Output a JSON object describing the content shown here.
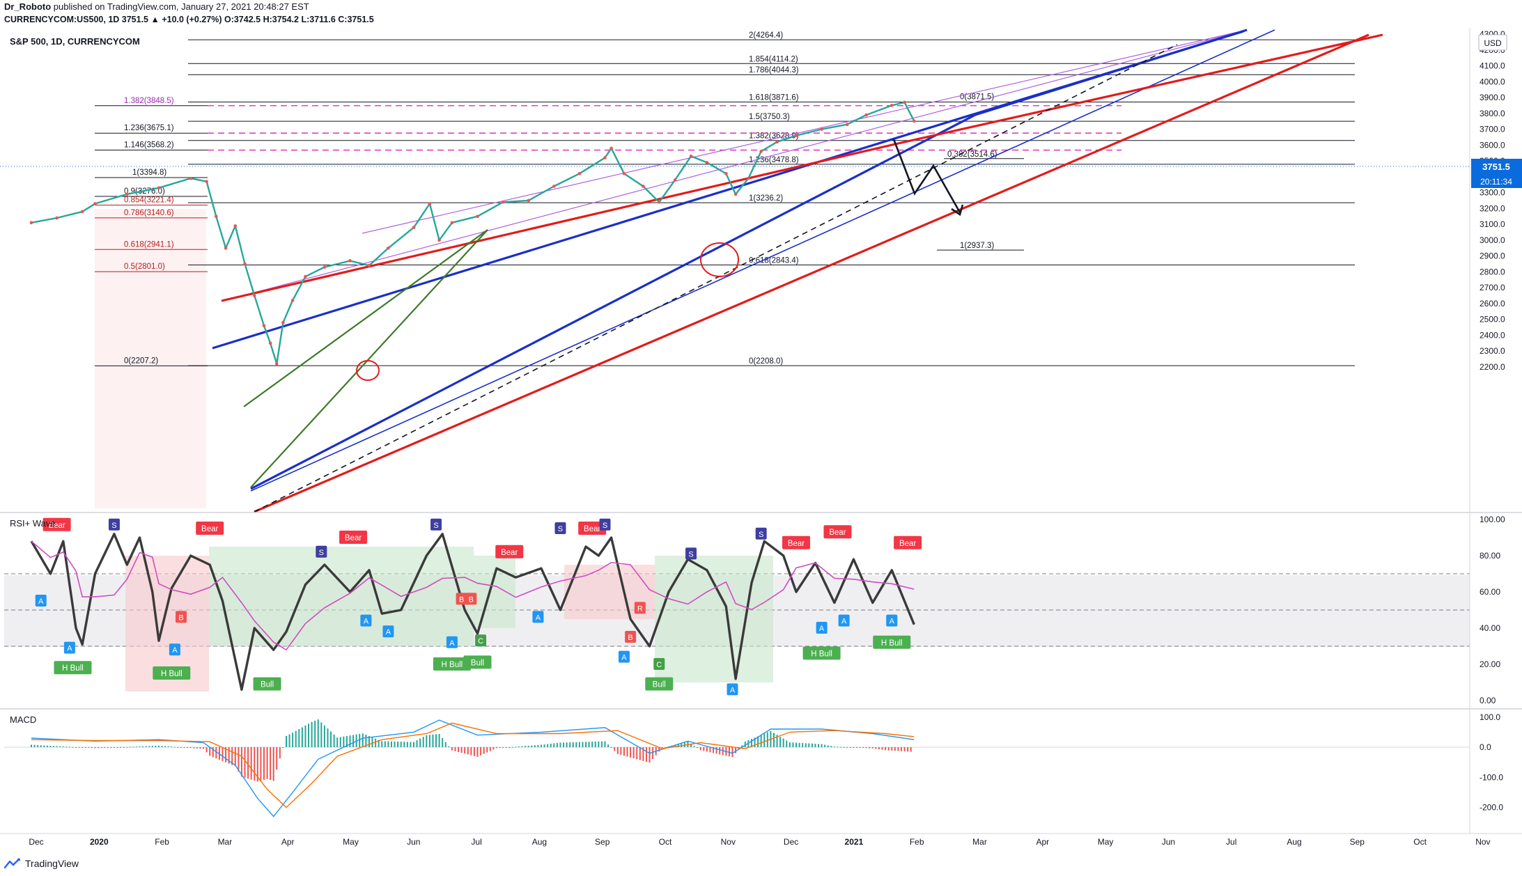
{
  "header": {
    "author": "Dr_Roboto",
    "published_text": "published on TradingView.com, January 27, 2021 20:48:27 EST",
    "symbol_line": "CURRENCYCOM:US500, 1D  3751.5 ▲ +10.0 (+0.27%) O:3742.5 H:3754.2 L:3711.6 C:3751.5"
  },
  "chart_data": {
    "type": "line",
    "title": "S&P 500, 1D, CURRENCYCOM",
    "currency": "USD",
    "last_price": "3751.5",
    "countdown": "20:11:34",
    "price_axis": {
      "ylim": [
        2200,
        4350
      ],
      "ticks": [
        "4300.0",
        "4200.0",
        "4100.0",
        "4000.0",
        "3900.0",
        "3800.0",
        "3700.0",
        "3600.0",
        "3500.0",
        "3400.0",
        "3300.0",
        "3200.0",
        "3100.0",
        "3000.0",
        "2900.0",
        "2800.0",
        "2700.0",
        "2600.0",
        "2500.0",
        "2400.0",
        "2300.0",
        "2200.0"
      ]
    },
    "time_axis": {
      "labels": [
        "Dec",
        "2020",
        "Feb",
        "Mar",
        "Apr",
        "May",
        "Jun",
        "Jul",
        "Aug",
        "Sep",
        "Oct",
        "Nov",
        "Dec",
        "2021",
        "Feb",
        "Mar",
        "Apr",
        "May",
        "Jun",
        "Jul",
        "Aug",
        "Sep",
        "Oct",
        "Nov"
      ]
    },
    "price_series": [
      {
        "m": 0,
        "v": 3110
      },
      {
        "m": 0.4,
        "v": 3140
      },
      {
        "m": 0.8,
        "v": 3180
      },
      {
        "m": 1.0,
        "v": 3230
      },
      {
        "m": 1.5,
        "v": 3290
      },
      {
        "m": 2.0,
        "v": 3330
      },
      {
        "m": 2.5,
        "v": 3390
      },
      {
        "m": 2.75,
        "v": 3370
      },
      {
        "m": 2.9,
        "v": 3150
      },
      {
        "m": 3.05,
        "v": 2950
      },
      {
        "m": 3.2,
        "v": 3090
      },
      {
        "m": 3.35,
        "v": 2850
      },
      {
        "m": 3.5,
        "v": 2650
      },
      {
        "m": 3.65,
        "v": 2460
      },
      {
        "m": 3.75,
        "v": 2350
      },
      {
        "m": 3.85,
        "v": 2220
      },
      {
        "m": 3.95,
        "v": 2480
      },
      {
        "m": 4.1,
        "v": 2620
      },
      {
        "m": 4.3,
        "v": 2770
      },
      {
        "m": 4.6,
        "v": 2830
      },
      {
        "m": 5.0,
        "v": 2870
      },
      {
        "m": 5.3,
        "v": 2840
      },
      {
        "m": 5.6,
        "v": 2950
      },
      {
        "m": 6.0,
        "v": 3080
      },
      {
        "m": 6.25,
        "v": 3230
      },
      {
        "m": 6.4,
        "v": 3000
      },
      {
        "m": 6.6,
        "v": 3110
      },
      {
        "m": 7.0,
        "v": 3150
      },
      {
        "m": 7.4,
        "v": 3240
      },
      {
        "m": 7.8,
        "v": 3250
      },
      {
        "m": 8.2,
        "v": 3340
      },
      {
        "m": 8.6,
        "v": 3420
      },
      {
        "m": 9.0,
        "v": 3520
      },
      {
        "m": 9.1,
        "v": 3580
      },
      {
        "m": 9.3,
        "v": 3420
      },
      {
        "m": 9.6,
        "v": 3340
      },
      {
        "m": 9.85,
        "v": 3240
      },
      {
        "m": 10.1,
        "v": 3380
      },
      {
        "m": 10.35,
        "v": 3530
      },
      {
        "m": 10.6,
        "v": 3490
      },
      {
        "m": 10.9,
        "v": 3420
      },
      {
        "m": 11.05,
        "v": 3290
      },
      {
        "m": 11.25,
        "v": 3390
      },
      {
        "m": 11.45,
        "v": 3560
      },
      {
        "m": 11.7,
        "v": 3620
      },
      {
        "m": 12.0,
        "v": 3660
      },
      {
        "m": 12.4,
        "v": 3700
      },
      {
        "m": 12.8,
        "v": 3730
      },
      {
        "m": 13.1,
        "v": 3790
      },
      {
        "m": 13.5,
        "v": 3850
      },
      {
        "m": 13.7,
        "v": 3870
      },
      {
        "m": 13.85,
        "v": 3751.5
      }
    ],
    "fib_levels": [
      {
        "label": "2(4264.4)",
        "price": 4264.4,
        "group": "right"
      },
      {
        "label": "1.854(4114.2)",
        "price": 4114.2,
        "group": "right"
      },
      {
        "label": "1.786(4044.3)",
        "price": 4044.3,
        "group": "right"
      },
      {
        "label": "1.618(3871.6)",
        "price": 3871.6,
        "group": "right"
      },
      {
        "label": "1.5(3750.3)",
        "price": 3750.3,
        "group": "right"
      },
      {
        "label": "1.382(3628.9)",
        "price": 3628.9,
        "group": "right"
      },
      {
        "label": "1.236(3478.8)",
        "price": 3478.8,
        "group": "right"
      },
      {
        "label": "1(3236.2)",
        "price": 3236.2,
        "group": "right"
      },
      {
        "label": "0.618(2843.4)",
        "price": 2843.4,
        "group": "right"
      },
      {
        "label": "0(2208.0)",
        "price": 2208.0,
        "group": "right"
      },
      {
        "label": "1.382(3848.5)",
        "price": 3848.5,
        "group": "left-ext"
      },
      {
        "label": "1.236(3675.1)",
        "price": 3675.1,
        "group": "left-ext"
      },
      {
        "label": "1.146(3568.2)",
        "price": 3568.2,
        "group": "left-ext"
      },
      {
        "label": "1(3394.8)",
        "price": 3394.8,
        "group": "left"
      },
      {
        "label": "0.9(3276.0)",
        "price": 3276.0,
        "group": "left"
      },
      {
        "label": "0.854(3221.4)",
        "price": 3221.4,
        "group": "left"
      },
      {
        "label": "0.786(3140.6)",
        "price": 3140.6,
        "group": "left"
      },
      {
        "label": "0.618(2941.1)",
        "price": 2941.1,
        "group": "left"
      },
      {
        "label": "0.5(2801.0)",
        "price": 2801.0,
        "group": "left"
      },
      {
        "label": "0(2207.2)",
        "price": 2207.2,
        "group": "left"
      },
      {
        "label": "0(3871.5)",
        "price": 3871.5,
        "group": "proj"
      },
      {
        "label": "0.382(3514.6)",
        "price": 3514.6,
        "group": "proj"
      },
      {
        "label": "1(2937.3)",
        "price": 2937.3,
        "group": "proj"
      }
    ],
    "rsi": {
      "title": "RSI+ Wave",
      "ylim": [
        0,
        100
      ],
      "ticks": [
        "100.00",
        "80.00",
        "60.00",
        "40.00",
        "20.00",
        "0.00"
      ],
      "bands": [
        70,
        50,
        30
      ],
      "series": [
        {
          "m": 0,
          "v": 88
        },
        {
          "m": 0.3,
          "v": 70
        },
        {
          "m": 0.5,
          "v": 88
        },
        {
          "m": 0.7,
          "v": 40
        },
        {
          "m": 0.8,
          "v": 31
        },
        {
          "m": 1.0,
          "v": 70
        },
        {
          "m": 1.3,
          "v": 92
        },
        {
          "m": 1.5,
          "v": 75
        },
        {
          "m": 1.7,
          "v": 90
        },
        {
          "m": 1.9,
          "v": 60
        },
        {
          "m": 2.0,
          "v": 33
        },
        {
          "m": 2.2,
          "v": 62
        },
        {
          "m": 2.5,
          "v": 80
        },
        {
          "m": 2.8,
          "v": 75
        },
        {
          "m": 3.0,
          "v": 55
        },
        {
          "m": 3.3,
          "v": 6
        },
        {
          "m": 3.5,
          "v": 40
        },
        {
          "m": 3.8,
          "v": 28
        },
        {
          "m": 4.0,
          "v": 38
        },
        {
          "m": 4.3,
          "v": 64
        },
        {
          "m": 4.6,
          "v": 75
        },
        {
          "m": 5.0,
          "v": 60
        },
        {
          "m": 5.3,
          "v": 72
        },
        {
          "m": 5.5,
          "v": 48
        },
        {
          "m": 5.8,
          "v": 50
        },
        {
          "m": 6.2,
          "v": 80
        },
        {
          "m": 6.45,
          "v": 92
        },
        {
          "m": 6.8,
          "v": 50
        },
        {
          "m": 7.0,
          "v": 37
        },
        {
          "m": 7.3,
          "v": 73
        },
        {
          "m": 7.6,
          "v": 68
        },
        {
          "m": 8.0,
          "v": 73
        },
        {
          "m": 8.3,
          "v": 50
        },
        {
          "m": 8.7,
          "v": 85
        },
        {
          "m": 8.9,
          "v": 80
        },
        {
          "m": 9.1,
          "v": 90
        },
        {
          "m": 9.4,
          "v": 45
        },
        {
          "m": 9.7,
          "v": 30
        },
        {
          "m": 10.0,
          "v": 60
        },
        {
          "m": 10.3,
          "v": 78
        },
        {
          "m": 10.6,
          "v": 72
        },
        {
          "m": 10.9,
          "v": 52
        },
        {
          "m": 11.05,
          "v": 12
        },
        {
          "m": 11.3,
          "v": 65
        },
        {
          "m": 11.5,
          "v": 88
        },
        {
          "m": 11.8,
          "v": 80
        },
        {
          "m": 12.0,
          "v": 60
        },
        {
          "m": 12.3,
          "v": 76
        },
        {
          "m": 12.6,
          "v": 54
        },
        {
          "m": 12.9,
          "v": 78
        },
        {
          "m": 13.2,
          "v": 54
        },
        {
          "m": 13.5,
          "v": 72
        },
        {
          "m": 13.85,
          "v": 42
        }
      ],
      "signals": [
        {
          "text": "Bear",
          "m": 0.4,
          "v": 97
        },
        {
          "text": "Bear",
          "m": 2.8,
          "v": 95
        },
        {
          "text": "Bear",
          "m": 5.05,
          "v": 90
        },
        {
          "text": "Bear",
          "m": 7.5,
          "v": 82
        },
        {
          "text": "Bear",
          "m": 8.8,
          "v": 95
        },
        {
          "text": "Bear",
          "m": 12.0,
          "v": 87
        },
        {
          "text": "Bear",
          "m": 12.65,
          "v": 93
        },
        {
          "text": "Bear",
          "m": 13.75,
          "v": 87
        },
        {
          "text": "H Bull",
          "m": 0.65,
          "v": 18
        },
        {
          "text": "H Bull",
          "m": 2.2,
          "v": 15
        },
        {
          "text": "Bull",
          "m": 3.7,
          "v": 9
        },
        {
          "text": "H Bull",
          "m": 6.6,
          "v": 20
        },
        {
          "text": "Bull",
          "m": 7.0,
          "v": 21
        },
        {
          "text": "Bull",
          "m": 9.85,
          "v": 9
        },
        {
          "text": "H Bull",
          "m": 12.4,
          "v": 26
        },
        {
          "text": "H Bull",
          "m": 13.5,
          "v": 32
        }
      ],
      "letters": [
        {
          "t": "A",
          "m": 0.15,
          "v": 55
        },
        {
          "t": "A",
          "m": 0.6,
          "v": 29
        },
        {
          "t": "S",
          "m": 1.3,
          "v": 97
        },
        {
          "t": "A",
          "m": 2.25,
          "v": 28
        },
        {
          "t": "B",
          "m": 2.35,
          "v": 46
        },
        {
          "t": "A",
          "m": 5.25,
          "v": 44
        },
        {
          "t": "A",
          "m": 5.6,
          "v": 38
        },
        {
          "t": "S",
          "m": 6.35,
          "v": 97
        },
        {
          "t": "S",
          "m": 4.55,
          "v": 82
        },
        {
          "t": "A",
          "m": 6.6,
          "v": 32
        },
        {
          "t": "B",
          "m": 6.75,
          "v": 56
        },
        {
          "t": "B",
          "m": 6.9,
          "v": 56
        },
        {
          "t": "C",
          "m": 7.05,
          "v": 33
        },
        {
          "t": "A",
          "m": 7.95,
          "v": 46
        },
        {
          "t": "S",
          "m": 8.3,
          "v": 95
        },
        {
          "t": "S",
          "m": 9.0,
          "v": 97
        },
        {
          "t": "A",
          "m": 9.3,
          "v": 24
        },
        {
          "t": "B",
          "m": 9.4,
          "v": 35
        },
        {
          "t": "R",
          "m": 9.55,
          "v": 51
        },
        {
          "t": "C",
          "m": 9.85,
          "v": 20
        },
        {
          "t": "S",
          "m": 10.35,
          "v": 81
        },
        {
          "t": "A",
          "m": 11.0,
          "v": 6
        },
        {
          "t": "S",
          "m": 11.45,
          "v": 92
        },
        {
          "t": "A",
          "m": 12.4,
          "v": 40
        },
        {
          "t": "A",
          "m": 12.75,
          "v": 44
        },
        {
          "t": "A",
          "m": 13.5,
          "v": 44
        }
      ]
    },
    "macd": {
      "title": "MACD",
      "ylim": [
        -260,
        130
      ],
      "ticks": [
        "100.0",
        "0.0",
        "-100.0",
        "-200.0"
      ],
      "macd_line": [
        {
          "m": 0,
          "v": 30
        },
        {
          "m": 1,
          "v": 20
        },
        {
          "m": 2,
          "v": 25
        },
        {
          "m": 2.7,
          "v": 15
        },
        {
          "m": 3.2,
          "v": -60
        },
        {
          "m": 3.55,
          "v": -170
        },
        {
          "m": 3.8,
          "v": -230
        },
        {
          "m": 4.1,
          "v": -150
        },
        {
          "m": 4.5,
          "v": -40
        },
        {
          "m": 5.2,
          "v": 30
        },
        {
          "m": 6.0,
          "v": 50
        },
        {
          "m": 6.4,
          "v": 90
        },
        {
          "m": 7.0,
          "v": 40
        },
        {
          "m": 8.0,
          "v": 50
        },
        {
          "m": 9.0,
          "v": 65
        },
        {
          "m": 9.7,
          "v": -20
        },
        {
          "m": 10.3,
          "v": 20
        },
        {
          "m": 11.0,
          "v": -20
        },
        {
          "m": 11.6,
          "v": 60
        },
        {
          "m": 12.4,
          "v": 60
        },
        {
          "m": 13.2,
          "v": 45
        },
        {
          "m": 13.85,
          "v": 25
        }
      ],
      "signal_line": [
        {
          "m": 0,
          "v": 25
        },
        {
          "m": 1,
          "v": 22
        },
        {
          "m": 2,
          "v": 22
        },
        {
          "m": 2.8,
          "v": 18
        },
        {
          "m": 3.3,
          "v": -30
        },
        {
          "m": 3.7,
          "v": -140
        },
        {
          "m": 4.0,
          "v": -200
        },
        {
          "m": 4.4,
          "v": -120
        },
        {
          "m": 4.8,
          "v": -30
        },
        {
          "m": 5.5,
          "v": 25
        },
        {
          "m": 6.2,
          "v": 45
        },
        {
          "m": 6.6,
          "v": 80
        },
        {
          "m": 7.3,
          "v": 45
        },
        {
          "m": 8.3,
          "v": 45
        },
        {
          "m": 9.2,
          "v": 55
        },
        {
          "m": 9.9,
          "v": -5
        },
        {
          "m": 10.5,
          "v": 15
        },
        {
          "m": 11.2,
          "v": -5
        },
        {
          "m": 11.9,
          "v": 50
        },
        {
          "m": 12.6,
          "v": 55
        },
        {
          "m": 13.4,
          "v": 45
        },
        {
          "m": 13.85,
          "v": 35
        }
      ]
    }
  },
  "footer": {
    "brand": "TradingView"
  }
}
